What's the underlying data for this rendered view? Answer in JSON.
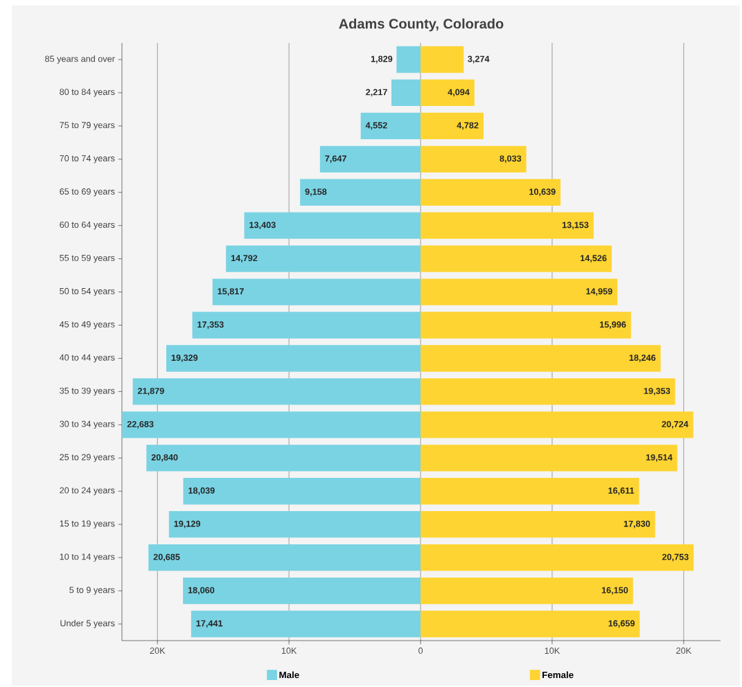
{
  "chart_data": {
    "type": "bar",
    "orientation": "horizontal",
    "title": "Adams County, Colorado",
    "categories": [
      "85 years and over",
      "80 to 84 years",
      "75 to 79 years",
      "70 to 74 years",
      "65 to 69 years",
      "60 to 64 years",
      "55 to 59 years",
      "50 to 54 years",
      "45 to 49 years",
      "40 to 44 years",
      "35 to 39 years",
      "30 to 34 years",
      "25 to 29 years",
      "20 to 24 years",
      "15 to 19 years",
      "10 to 14 years",
      "5 to 9 years",
      "Under 5 years"
    ],
    "series": [
      {
        "name": "Male",
        "color": "#7ad3e3",
        "values": [
          1829,
          2217,
          4552,
          7647,
          9158,
          13403,
          14792,
          15817,
          17353,
          19329,
          21879,
          22683,
          20840,
          18039,
          19129,
          20685,
          18060,
          17441
        ],
        "base": [
          -1829,
          -2217,
          -4552,
          -7647,
          -9158,
          -13403,
          -14792,
          -15817,
          -17353,
          -19329,
          -21879,
          -22683,
          -20840,
          -18039,
          -19129,
          -20685,
          -18060,
          -17441
        ],
        "value_labels": [
          "1,829",
          "2,217",
          "4,552",
          "7,647",
          "9,158",
          "13,403",
          "14,792",
          "15,817",
          "17,353",
          "19,329",
          "21,879",
          "22,683",
          "20,840",
          "18,039",
          "19,129",
          "20,685",
          "18,060",
          "17,441"
        ]
      },
      {
        "name": "Female",
        "color": "#fed432",
        "values": [
          3274,
          4094,
          4782,
          8033,
          10639,
          13153,
          14526,
          14959,
          15996,
          18246,
          19353,
          20724,
          19514,
          16611,
          17830,
          20753,
          16150,
          16659
        ],
        "value_labels": [
          "3,274",
          "4,094",
          "4,782",
          "8,033",
          "10,639",
          "13,153",
          "14,526",
          "14,959",
          "15,996",
          "18,246",
          "19,353",
          "20,724",
          "19,514",
          "16,611",
          "17,830",
          "20,753",
          "16,150",
          "16,659"
        ]
      }
    ],
    "xlim": [
      -22700,
      22800
    ],
    "xticks": [
      {
        "value": -20000,
        "label": "20K"
      },
      {
        "value": -10000,
        "label": "10K"
      },
      0,
      {
        "value": 10000,
        "label": "10K"
      },
      {
        "value": 20000,
        "label": "20K"
      }
    ],
    "grid": "x",
    "legend": "bottom"
  }
}
